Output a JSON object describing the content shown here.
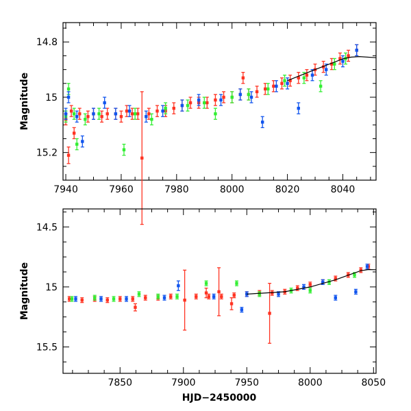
{
  "chart_data": [
    {
      "type": "scatter",
      "title": "",
      "xlabel": "",
      "ylabel": "Magnitude",
      "xlim": [
        7939,
        8052
      ],
      "ylim": [
        15.3,
        14.73
      ],
      "y_inverted": true,
      "grid": false,
      "legend": "none",
      "x_ticks": [
        7940,
        7960,
        7980,
        8000,
        8020,
        8040
      ],
      "y_ticks": [
        14.8,
        15,
        15.2
      ],
      "series": [
        {
          "color": "#ff3322",
          "points": [
            [
              7940,
              15.08,
              0.02
            ],
            [
              7941,
              15.21,
              0.03
            ],
            [
              7942,
              15.05,
              0.02
            ],
            [
              7943,
              15.13,
              0.02
            ],
            [
              7945,
              15.06,
              0.02
            ],
            [
              7948,
              15.07,
              0.02
            ],
            [
              7950,
              15.06,
              0.02
            ],
            [
              7953,
              15.07,
              0.02
            ],
            [
              7955,
              15.06,
              0.02
            ],
            [
              7958,
              15.06,
              0.02
            ],
            [
              7960,
              15.07,
              0.02
            ],
            [
              7962,
              15.05,
              0.02
            ],
            [
              7964,
              15.06,
              0.02
            ],
            [
              7966,
              15.06,
              0.02
            ],
            [
              7967.5,
              15.22,
              0.24
            ],
            [
              7970,
              15.06,
              0.02
            ],
            [
              7973,
              15.05,
              0.02
            ],
            [
              7976,
              15.05,
              0.02
            ],
            [
              7979,
              15.04,
              0.02
            ],
            [
              7982,
              15.03,
              0.02
            ],
            [
              7985,
              15.02,
              0.02
            ],
            [
              7988,
              15.02,
              0.02
            ],
            [
              7991,
              15.02,
              0.02
            ],
            [
              7994,
              15.01,
              0.02
            ],
            [
              7997,
              15.0,
              0.02
            ],
            [
              8000,
              15.0,
              0.02
            ],
            [
              8003,
              14.99,
              0.02
            ],
            [
              8004,
              14.93,
              0.02
            ],
            [
              8006,
              14.99,
              0.02
            ],
            [
              8009,
              14.98,
              0.02
            ],
            [
              8012,
              14.97,
              0.02
            ],
            [
              8015,
              14.96,
              0.02
            ],
            [
              8018,
              14.95,
              0.02
            ],
            [
              8021,
              14.94,
              0.02
            ],
            [
              8024,
              14.93,
              0.02
            ],
            [
              8027,
              14.92,
              0.02
            ],
            [
              8030,
              14.9,
              0.02
            ],
            [
              8033,
              14.89,
              0.02
            ],
            [
              8036,
              14.88,
              0.02
            ],
            [
              8039,
              14.86,
              0.02
            ],
            [
              8042,
              14.85,
              0.02
            ],
            [
              8045,
              14.83,
              0.02
            ]
          ]
        },
        {
          "color": "#33ee33",
          "points": [
            [
              7940,
              15.07,
              0.02
            ],
            [
              7941,
              14.97,
              0.02
            ],
            [
              7943,
              15.06,
              0.02
            ],
            [
              7944,
              15.17,
              0.02
            ],
            [
              7947,
              15.08,
              0.02
            ],
            [
              7952,
              15.06,
              0.02
            ],
            [
              7961,
              15.19,
              0.02
            ],
            [
              7965,
              15.06,
              0.02
            ],
            [
              7971,
              15.08,
              0.02
            ],
            [
              7976,
              15.04,
              0.02
            ],
            [
              7984,
              15.03,
              0.02
            ],
            [
              7990,
              15.02,
              0.02
            ],
            [
              7994,
              15.06,
              0.02
            ],
            [
              8000,
              15.0,
              0.02
            ],
            [
              8006,
              14.99,
              0.02
            ],
            [
              8013,
              14.97,
              0.02
            ],
            [
              8019,
              14.94,
              0.02
            ],
            [
              8026,
              14.93,
              0.02
            ],
            [
              8032,
              14.96,
              0.02
            ],
            [
              8037,
              14.88,
              0.02
            ],
            [
              8041,
              14.86,
              0.02
            ]
          ]
        },
        {
          "color": "#1155ee",
          "points": [
            [
              7940,
              15.06,
              0.02
            ],
            [
              7941,
              15.0,
              0.02
            ],
            [
              7944,
              15.07,
              0.02
            ],
            [
              7946,
              15.16,
              0.02
            ],
            [
              7950,
              15.06,
              0.02
            ],
            [
              7954,
              15.02,
              0.02
            ],
            [
              7958,
              15.06,
              0.02
            ],
            [
              7963,
              15.05,
              0.02
            ],
            [
              7969,
              15.07,
              0.02
            ],
            [
              7975,
              15.05,
              0.02
            ],
            [
              7982,
              15.03,
              0.02
            ],
            [
              7988,
              15.01,
              0.02
            ],
            [
              7996,
              15.01,
              0.02
            ],
            [
              8003,
              14.99,
              0.02
            ],
            [
              8007,
              15.0,
              0.02
            ],
            [
              8011,
              15.09,
              0.02
            ],
            [
              8016,
              14.96,
              0.02
            ],
            [
              8020,
              14.95,
              0.02
            ],
            [
              8024,
              15.04,
              0.02
            ],
            [
              8029,
              14.92,
              0.02
            ],
            [
              8034,
              14.9,
              0.02
            ],
            [
              8040,
              14.87,
              0.02
            ],
            [
              8045,
              14.83,
              0.02
            ]
          ]
        }
      ],
      "model_curve": [
        [
          8020,
          14.94
        ],
        [
          8030,
          14.9
        ],
        [
          8040,
          14.861
        ],
        [
          8043,
          14.855
        ],
        [
          8046,
          14.853
        ],
        [
          8052,
          14.857
        ]
      ]
    },
    {
      "type": "scatter",
      "title": "",
      "xlabel": "HJD−2450000",
      "ylabel": "Magnitude",
      "xlim": [
        7805,
        8052
      ],
      "ylim": [
        15.72,
        14.35
      ],
      "y_inverted": true,
      "grid": false,
      "legend": "none",
      "x_ticks": [
        7850,
        7900,
        7950,
        8000,
        8050
      ],
      "y_ticks": [
        14.5,
        15,
        15.5
      ],
      "series": [
        {
          "color": "#ff3322",
          "points": [
            [
              7810,
              15.1,
              0.02
            ],
            [
              7820,
              15.11,
              0.02
            ],
            [
              7830,
              15.1,
              0.02
            ],
            [
              7840,
              15.11,
              0.02
            ],
            [
              7850,
              15.1,
              0.02
            ],
            [
              7860,
              15.1,
              0.02
            ],
            [
              7862,
              15.17,
              0.03
            ],
            [
              7870,
              15.09,
              0.02
            ],
            [
              7880,
              15.09,
              0.02
            ],
            [
              7890,
              15.08,
              0.02
            ],
            [
              7901,
              15.11,
              0.25
            ],
            [
              7910,
              15.08,
              0.02
            ],
            [
              7918,
              15.05,
              0.04
            ],
            [
              7920,
              15.08,
              0.02
            ],
            [
              7928,
              15.04,
              0.2
            ],
            [
              7930,
              15.08,
              0.02
            ],
            [
              7938,
              15.14,
              0.05
            ],
            [
              7940,
              15.07,
              0.02
            ],
            [
              7950,
              15.06,
              0.02
            ],
            [
              7960,
              15.05,
              0.02
            ],
            [
              7968,
              15.22,
              0.25
            ],
            [
              7970,
              15.05,
              0.02
            ],
            [
              7980,
              15.04,
              0.02
            ],
            [
              7990,
              15.01,
              0.02
            ],
            [
              8000,
              14.98,
              0.02
            ],
            [
              8010,
              14.96,
              0.02
            ],
            [
              8020,
              14.93,
              0.02
            ],
            [
              8030,
              14.9,
              0.02
            ],
            [
              8040,
              14.86,
              0.02
            ],
            [
              8046,
              14.83,
              0.02
            ]
          ]
        },
        {
          "color": "#33ee33",
          "points": [
            [
              7812,
              15.1,
              0.02
            ],
            [
              7830,
              15.09,
              0.02
            ],
            [
              7845,
              15.1,
              0.02
            ],
            [
              7865,
              15.06,
              0.02
            ],
            [
              7880,
              15.08,
              0.02
            ],
            [
              7895,
              15.08,
              0.02
            ],
            [
              7918,
              14.97,
              0.02
            ],
            [
              7942,
              14.97,
              0.02
            ],
            [
              7960,
              15.06,
              0.02
            ],
            [
              7985,
              15.03,
              0.02
            ],
            [
              8000,
              15.03,
              0.02
            ],
            [
              8015,
              14.96,
              0.02
            ],
            [
              8035,
              14.9,
              0.02
            ]
          ]
        },
        {
          "color": "#1155ee",
          "points": [
            [
              7815,
              15.1,
              0.02
            ],
            [
              7835,
              15.1,
              0.02
            ],
            [
              7855,
              15.1,
              0.02
            ],
            [
              7885,
              15.09,
              0.02
            ],
            [
              7896,
              14.99,
              0.04
            ],
            [
              7924,
              15.08,
              0.02
            ],
            [
              7946,
              15.19,
              0.02
            ],
            [
              7950,
              15.06,
              0.02
            ],
            [
              7975,
              15.06,
              0.02
            ],
            [
              7995,
              15.0,
              0.02
            ],
            [
              8010,
              14.96,
              0.02
            ],
            [
              8020,
              15.09,
              0.02
            ],
            [
              8036,
              15.04,
              0.02
            ],
            [
              8045,
              14.83,
              0.02
            ]
          ]
        }
      ],
      "model_curve": [
        [
          7950,
          15.06
        ],
        [
          7980,
          15.04
        ],
        [
          8000,
          15.0
        ],
        [
          8020,
          14.94
        ],
        [
          8040,
          14.865
        ],
        [
          8046,
          14.855
        ],
        [
          8052,
          14.857
        ]
      ]
    }
  ]
}
